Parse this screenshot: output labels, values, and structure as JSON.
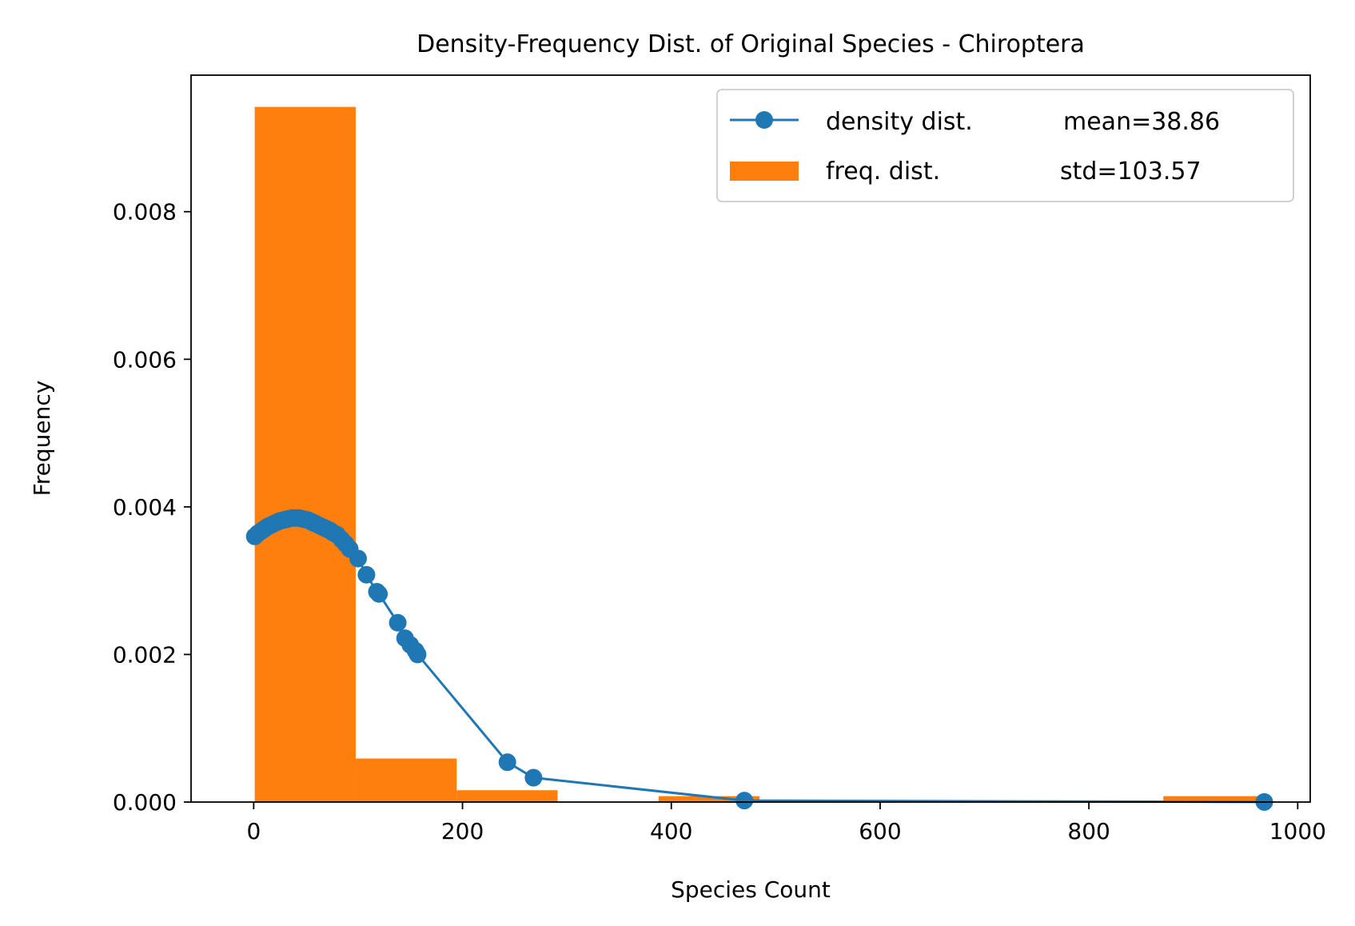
{
  "chart_data": {
    "type": "bar",
    "title": "Density-Frequency Dist. of Original Species - Chiroptera",
    "xlabel": "Species Count",
    "ylabel": "Frequency",
    "xlim": [
      -60,
      1012
    ],
    "ylim": [
      0,
      0.00985
    ],
    "xticks": [
      0,
      200,
      400,
      600,
      800,
      1000
    ],
    "yticks": [
      0.0,
      0.002,
      0.004,
      0.006,
      0.008
    ],
    "xtick_labels": [
      "0",
      "200",
      "400",
      "600",
      "800",
      "1000"
    ],
    "ytick_labels": [
      "0.000",
      "0.002",
      "0.004",
      "0.006",
      "0.008"
    ],
    "legend_position": "top-right",
    "grid": false,
    "colors": {
      "density": "#1f77b4",
      "freq": "#ff7f0e"
    },
    "series": [
      {
        "name": "density dist.",
        "kind": "line-marker",
        "stat_label": "mean=38.86",
        "x": [
          1,
          4,
          7,
          10,
          13,
          16,
          19,
          22,
          25,
          28,
          31,
          34,
          37,
          40,
          43,
          46,
          49,
          52,
          55,
          58,
          61,
          64,
          67,
          70,
          73,
          76,
          80,
          84,
          88,
          92,
          100,
          108,
          118,
          120,
          138,
          145,
          150,
          155,
          157,
          243,
          268,
          470,
          968
        ],
        "y": [
          0.0036,
          0.00364,
          0.00367,
          0.0037,
          0.00373,
          0.00375,
          0.00377,
          0.00379,
          0.00381,
          0.00382,
          0.00383,
          0.00384,
          0.00385,
          0.00385,
          0.00385,
          0.00384,
          0.00383,
          0.00382,
          0.0038,
          0.00378,
          0.00376,
          0.00374,
          0.00372,
          0.0037,
          0.00368,
          0.00365,
          0.00362,
          0.00356,
          0.0035,
          0.00343,
          0.0033,
          0.00308,
          0.00285,
          0.00282,
          0.00243,
          0.00222,
          0.00213,
          0.00205,
          0.002,
          0.00054,
          0.00033,
          2e-05,
          1e-06
        ]
      },
      {
        "name": "freq. dist.",
        "kind": "histogram",
        "stat_label": "std=103.57",
        "bin_edges": [
          1,
          97.7,
          194.4,
          291.1,
          387.8,
          484.5,
          581.2,
          677.9,
          774.6,
          871.3,
          968
        ],
        "values": [
          0.00942,
          0.00059,
          0.00016,
          0.0,
          8e-05,
          0.0,
          0.0,
          0.0,
          0.0,
          8e-05
        ]
      }
    ]
  }
}
